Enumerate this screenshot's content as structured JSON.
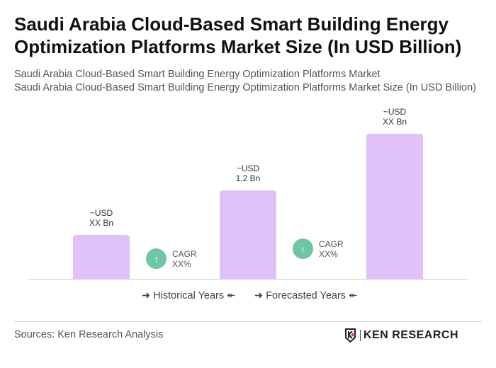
{
  "title": "Saudi Arabia Cloud-Based Smart Building Energy Optimization Platforms Market Size (In USD Billion)",
  "subtitles": [
    "Saudi Arabia Cloud-Based Smart Building Energy Optimization Platforms Market",
    "Saudi Arabia Cloud-Based Smart Building Energy Optimization Platforms Market Size (In USD Billion)"
  ],
  "chart_data": {
    "type": "bar",
    "values": [
      0.6,
      1.2,
      1.97
    ],
    "data_labels": [
      [
        "~USD",
        "XX Bn"
      ],
      [
        "~USD",
        "1.2 Bn"
      ],
      [
        "~USD",
        "XX Bn"
      ]
    ],
    "bar_color": "#dfc3f8",
    "cagr": [
      {
        "label": "CAGR",
        "value": "XX%"
      },
      {
        "label": "CAGR",
        "value": "XX%"
      }
    ],
    "cagr_color": "#6fc6a3",
    "legend": [
      "Historical Years",
      "Forecasted Years"
    ],
    "grid": false
  },
  "icons": {
    "cagr": "arrow-up-icon"
  },
  "footer": {
    "source": "Sources: Ken Research Analysis",
    "logo_text": "KEN RESEARCH"
  }
}
